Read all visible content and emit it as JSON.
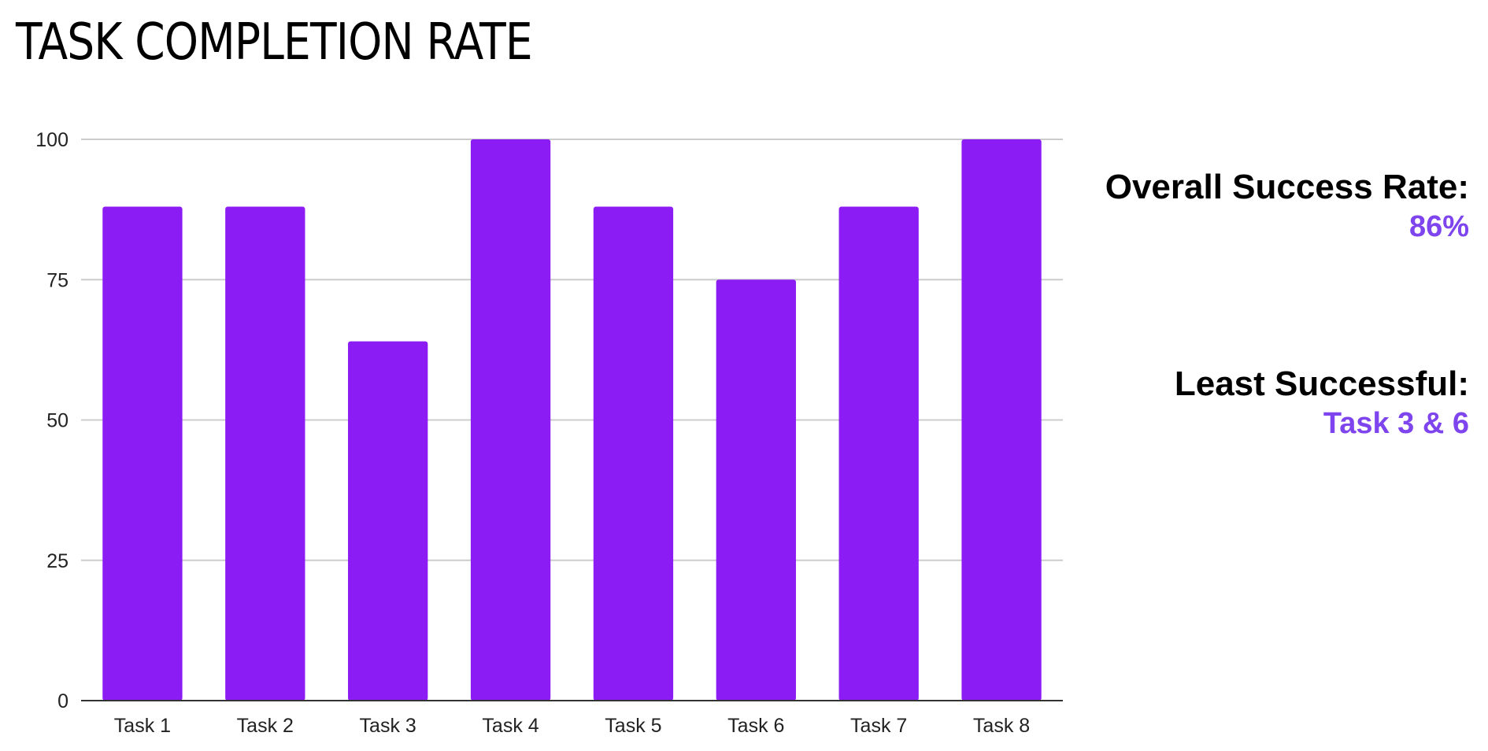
{
  "header": {
    "title": "TASK COMPLETION RATE"
  },
  "summary": {
    "overall_label": "Overall Success Rate:",
    "overall_value": "86%",
    "least_label": "Least Successful:",
    "least_value": "Task 3 & 6",
    "accent_color": "#7e44ee"
  },
  "chart_data": {
    "type": "bar",
    "categories": [
      "Task 1",
      "Task 2",
      "Task 3",
      "Task 4",
      "Task 5",
      "Task 6",
      "Task 7",
      "Task 8"
    ],
    "values": [
      88,
      88,
      64,
      100,
      88,
      75,
      88,
      100
    ],
    "ylim": [
      0,
      100
    ],
    "yticks": [
      0,
      25,
      50,
      75,
      100
    ],
    "grid": true,
    "legend": "none",
    "bar_color": "#8b1cf4",
    "gridline_color": "#cccccc",
    "axis_color": "#333333"
  }
}
